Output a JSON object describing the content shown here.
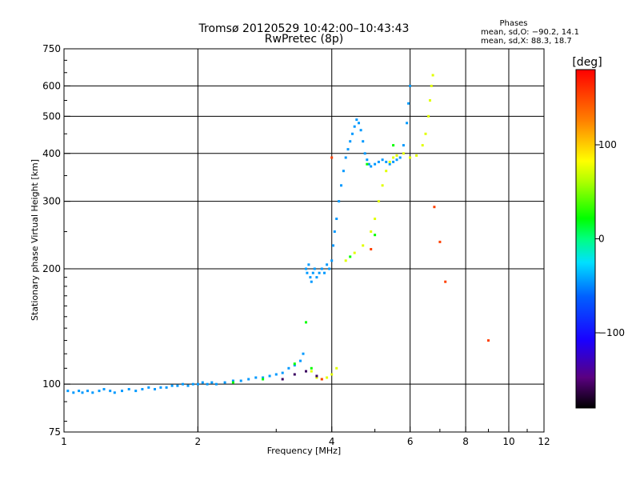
{
  "chart_data": {
    "type": "scatter",
    "title": "Tromsø 20120529 10:42:00–10:43:43",
    "subtitle": "RwPretec (8p)",
    "xlabel": "Frequency [MHz]",
    "ylabel": "Stationary phase Virtual Height [km]",
    "xscale": "log",
    "yscale": "log",
    "xlim": [
      1,
      12
    ],
    "ylim": [
      75,
      750
    ],
    "grid": true,
    "x_ticks": [
      1,
      2,
      4,
      6,
      8,
      10,
      12
    ],
    "x_tick_labels": [
      "1",
      "2",
      "4",
      "6",
      "8",
      "10",
      "12"
    ],
    "y_ticks": [
      75,
      100,
      200,
      300,
      400,
      500,
      600,
      750
    ],
    "y_tick_labels": [
      "75",
      "100",
      "200",
      "300",
      "400",
      "500",
      "600",
      "750"
    ],
    "phases_box": {
      "heading": "Phases",
      "line_o": "mean, sd,O: −90.2, 14.1",
      "line_x": "mean, sd,X:  88.3, 18.7"
    },
    "colorbar": {
      "label": "[deg]",
      "range": [
        -180,
        180
      ],
      "ticks": [
        100,
        0,
        -100
      ],
      "tick_labels": [
        "100",
        "0",
        "−100"
      ],
      "colormap": "rainbow"
    },
    "series": [
      {
        "phase": -95,
        "points": [
          [
            1.02,
            96
          ],
          [
            1.05,
            95
          ],
          [
            1.08,
            96
          ],
          [
            1.1,
            95
          ],
          [
            1.13,
            96
          ],
          [
            1.16,
            95
          ],
          [
            1.2,
            96
          ],
          [
            1.23,
            97
          ],
          [
            1.27,
            96
          ],
          [
            1.3,
            95
          ],
          [
            1.35,
            96
          ],
          [
            1.4,
            97
          ],
          [
            1.45,
            96
          ],
          [
            1.5,
            97
          ],
          [
            1.55,
            98
          ],
          [
            1.6,
            97
          ],
          [
            1.65,
            98
          ],
          [
            1.7,
            98
          ],
          [
            1.75,
            99
          ],
          [
            1.8,
            99
          ],
          [
            1.85,
            100
          ],
          [
            1.9,
            99
          ],
          [
            1.95,
            100
          ],
          [
            2.0,
            100
          ],
          [
            2.05,
            101
          ],
          [
            2.1,
            100
          ],
          [
            2.15,
            101
          ],
          [
            2.2,
            100
          ],
          [
            2.3,
            101
          ],
          [
            2.4,
            102
          ],
          [
            2.5,
            102
          ],
          [
            2.6,
            103
          ],
          [
            2.7,
            104
          ],
          [
            2.8,
            104
          ],
          [
            2.9,
            105
          ],
          [
            3.0,
            106
          ],
          [
            3.1,
            107
          ],
          [
            3.2,
            110
          ],
          [
            3.3,
            112
          ],
          [
            3.4,
            115
          ],
          [
            3.45,
            120
          ],
          [
            3.5,
            200
          ],
          [
            3.52,
            195
          ],
          [
            3.55,
            205
          ],
          [
            3.58,
            190
          ],
          [
            3.6,
            185
          ],
          [
            3.63,
            195
          ],
          [
            3.66,
            200
          ],
          [
            3.7,
            190
          ],
          [
            3.75,
            195
          ],
          [
            3.8,
            200
          ],
          [
            3.85,
            195
          ],
          [
            3.9,
            205
          ],
          [
            3.95,
            200
          ],
          [
            4.0,
            210
          ],
          [
            4.03,
            230
          ],
          [
            4.06,
            250
          ],
          [
            4.1,
            270
          ],
          [
            4.15,
            300
          ],
          [
            4.2,
            330
          ],
          [
            4.25,
            360
          ],
          [
            4.3,
            390
          ],
          [
            4.35,
            410
          ],
          [
            4.4,
            430
          ],
          [
            4.45,
            450
          ],
          [
            4.5,
            470
          ],
          [
            4.55,
            490
          ],
          [
            4.6,
            480
          ],
          [
            4.65,
            460
          ],
          [
            4.7,
            430
          ],
          [
            4.75,
            400
          ],
          [
            4.8,
            385
          ],
          [
            4.85,
            375
          ],
          [
            4.9,
            370
          ],
          [
            5.0,
            375
          ],
          [
            5.1,
            380
          ],
          [
            5.2,
            385
          ],
          [
            5.3,
            380
          ],
          [
            5.4,
            375
          ],
          [
            5.5,
            380
          ],
          [
            5.6,
            385
          ],
          [
            5.7,
            390
          ],
          [
            5.8,
            420
          ],
          [
            5.9,
            480
          ],
          [
            5.95,
            540
          ],
          [
            6.0,
            600
          ]
        ]
      },
      {
        "phase": 90,
        "points": [
          [
            3.6,
            108
          ],
          [
            3.7,
            104
          ],
          [
            3.8,
            103
          ],
          [
            3.9,
            104
          ],
          [
            4.0,
            106
          ],
          [
            4.1,
            110
          ],
          [
            4.3,
            210
          ],
          [
            4.5,
            220
          ],
          [
            4.7,
            230
          ],
          [
            4.9,
            250
          ],
          [
            5.0,
            270
          ],
          [
            5.1,
            300
          ],
          [
            5.2,
            330
          ],
          [
            5.3,
            360
          ],
          [
            5.4,
            380
          ],
          [
            5.5,
            390
          ],
          [
            5.6,
            395
          ],
          [
            5.8,
            400
          ],
          [
            6.0,
            390
          ],
          [
            6.2,
            395
          ],
          [
            6.4,
            420
          ],
          [
            6.5,
            450
          ],
          [
            6.6,
            500
          ],
          [
            6.65,
            550
          ],
          [
            6.7,
            600
          ],
          [
            6.75,
            640
          ]
        ]
      },
      {
        "phase": 20,
        "points": [
          [
            2.4,
            101
          ],
          [
            2.8,
            103
          ],
          [
            3.3,
            113
          ],
          [
            3.5,
            145
          ],
          [
            3.6,
            110
          ],
          [
            4.4,
            215
          ],
          [
            4.8,
            375
          ],
          [
            5.0,
            245
          ],
          [
            5.5,
            420
          ]
        ]
      },
      {
        "phase": -160,
        "points": [
          [
            3.1,
            103
          ],
          [
            3.3,
            106
          ],
          [
            3.5,
            108
          ],
          [
            3.7,
            105
          ]
        ]
      },
      {
        "phase": 160,
        "points": [
          [
            3.8,
            103
          ],
          [
            4.0,
            390
          ],
          [
            4.9,
            225
          ],
          [
            6.8,
            290
          ],
          [
            7.0,
            235
          ],
          [
            7.2,
            185
          ],
          [
            9.0,
            130
          ]
        ]
      }
    ]
  }
}
